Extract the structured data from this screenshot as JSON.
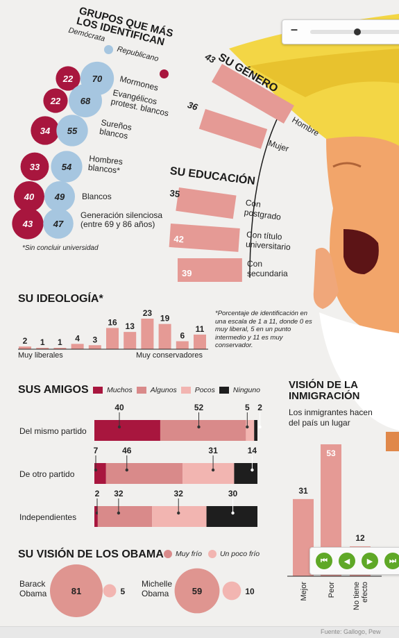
{
  "groups": {
    "title_line1": "GRUPOS QUE MÁS",
    "title_line2": "LOS IDENTIFICAN",
    "legend_dem": "Demócrata",
    "legend_rep": "Republicano",
    "note": "*Sin concluir universidad",
    "colors": {
      "dem": "#a6c6e0",
      "rep": "#a8163e"
    }
  },
  "genero": {
    "title": "SU GÉNERO"
  },
  "educacion": {
    "title": "SU EDUCACIÓN"
  },
  "ideologia": {
    "title": "SU IDEOLOGÍA*",
    "left_label": "Muy liberales",
    "right_label": "Muy conservadores",
    "note": "*Porcentaje de identificación en una escala de 1 a 11, donde 0 es muy liberal, 5 en un punto intermedio y 11 es muy conservador."
  },
  "amigos": {
    "title": "SUS AMIGOS",
    "legend": [
      "Muchos",
      "Algunos",
      "Pocos",
      "Ninguno"
    ],
    "colors": [
      "#a8163e",
      "#d98a8a",
      "#f2b5b1",
      "#1e1e1e"
    ]
  },
  "inmigracion": {
    "title_line1": "VISIÓN DE LA",
    "title_line2": "INMIGRACIÓN",
    "subtitle_line1": "Los inmigrantes hacen",
    "subtitle_line2": "del país un lugar"
  },
  "obama": {
    "title": "SU VISIÓN DE LOS OBAMA",
    "legend_muy": "Muy frío",
    "legend_poco": "Un poco frío"
  },
  "ui": {
    "zoom_minus": "–",
    "zoom_level": 0.5,
    "source": "Fuente: Gallogo, Pew"
  },
  "chart_data": [
    {
      "type": "bubble",
      "id": "grupos",
      "series_names": [
        "Demócrata",
        "Republicano"
      ],
      "categories": [
        "Mormones",
        "Evangélicos protest. blancos",
        "Sureños blancos",
        "Hombres blancos*",
        "Blancos",
        "Generación silenciosa (entre 69 y 86 años)"
      ],
      "label_lines": [
        [
          "Mormones"
        ],
        [
          "Evangélicos",
          "protest. blancos"
        ],
        [
          "Sureños",
          "blancos"
        ],
        [
          "Hombres",
          "blancos*"
        ],
        [
          "Blancos"
        ],
        [
          "Generación silenciosa",
          "(entre 69 y 86 años)"
        ]
      ],
      "dem": [
        22,
        22,
        34,
        33,
        40,
        43
      ],
      "rep": [
        70,
        68,
        55,
        54,
        49,
        47
      ]
    },
    {
      "type": "bar",
      "id": "genero",
      "categories": [
        "Hombre",
        "Mujer"
      ],
      "values": [
        43,
        36
      ]
    },
    {
      "type": "bar",
      "id": "educacion",
      "categories": [
        "Con postgrado",
        "Con título universitario",
        "Con secundaria"
      ],
      "label_lines": [
        [
          "Con",
          "postgrado"
        ],
        [
          "Con título",
          "universitario"
        ],
        [
          "Con",
          "secundaria"
        ]
      ],
      "values": [
        35,
        42,
        39
      ]
    },
    {
      "type": "bar",
      "id": "ideologia",
      "values": [
        2,
        1,
        1,
        4,
        3,
        16,
        13,
        23,
        19,
        6,
        11
      ]
    },
    {
      "type": "bar",
      "id": "amigos",
      "stacked": true,
      "categories": [
        "Del mismo partido",
        "De otro partido",
        "Independientes"
      ],
      "series": [
        {
          "name": "Muchos",
          "values": [
            40,
            7,
            2
          ]
        },
        {
          "name": "Algunos",
          "values": [
            52,
            46,
            32
          ]
        },
        {
          "name": "Pocos",
          "values": [
            5,
            31,
            32
          ]
        },
        {
          "name": "Ninguno",
          "values": [
            2,
            14,
            30
          ]
        }
      ]
    },
    {
      "type": "bar",
      "id": "inmigracion",
      "categories": [
        "Mejor",
        "Peor",
        "No tiene efecto"
      ],
      "label_lines": [
        [
          "Mejor"
        ],
        [
          "Peor"
        ],
        [
          "No tiene",
          "efecto"
        ]
      ],
      "values": [
        31,
        53,
        12
      ]
    },
    {
      "type": "bubble",
      "id": "obama",
      "categories": [
        "Barack Obama",
        "Michelle Obama"
      ],
      "label_lines": [
        [
          "Barack",
          "Obama"
        ],
        [
          "Michelle",
          "Obama"
        ]
      ],
      "series": [
        {
          "name": "Muy frío",
          "values": [
            81,
            59
          ]
        },
        {
          "name": "Un poco frío",
          "values": [
            5,
            10
          ]
        }
      ]
    }
  ]
}
